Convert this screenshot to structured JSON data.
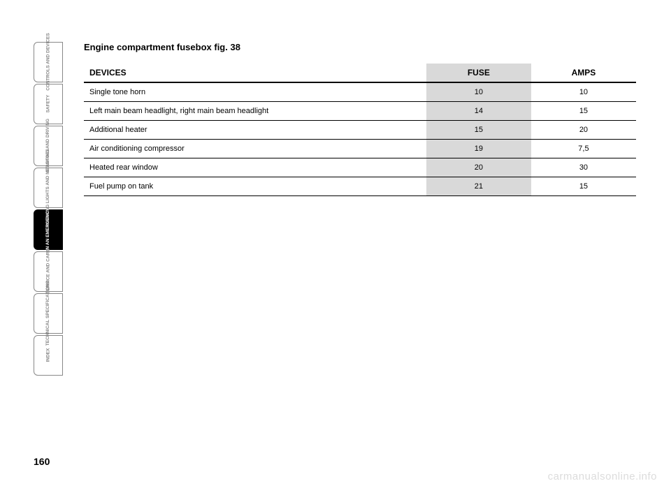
{
  "page_number": "160",
  "watermark": "carmanualsonline.info",
  "title": "Engine compartment fusebox fig. 38",
  "tabs": [
    {
      "label": "CONTROLS\nAND DEVICES",
      "active": false
    },
    {
      "label": "SAFETY",
      "active": false
    },
    {
      "label": "STARTING\nAND DRIVING",
      "active": false
    },
    {
      "label": "WARNING\nLIGHTS AND\nMESSAGES",
      "active": false
    },
    {
      "label": "IN AN\nEMERGENCY",
      "active": true
    },
    {
      "label": "SERVICE\nAND CARE",
      "active": false
    },
    {
      "label": "TECHNICAL\nSPECIFICATIONS",
      "active": false
    },
    {
      "label": "INDEX",
      "active": false
    }
  ],
  "table": {
    "columns": {
      "devices": "DEVICES",
      "fuse": "FUSE",
      "amps": "AMPS"
    },
    "header_bg_fuse": "#d9d9d9",
    "border_color": "#000000",
    "header_border_width": 2,
    "row_border_width": 1,
    "rows": [
      {
        "device": "Single tone horn",
        "fuse": "10",
        "amps": "10"
      },
      {
        "device": "Left main beam headlight, right main beam headlight",
        "fuse": "14",
        "amps": "15"
      },
      {
        "device": "Additional heater",
        "fuse": "15",
        "amps": "20"
      },
      {
        "device": "Air conditioning compressor",
        "fuse": "19",
        "amps": "7,5"
      },
      {
        "device": "Heated rear window",
        "fuse": "20",
        "amps": "30"
      },
      {
        "device": "Fuel pump on tank",
        "fuse": "21",
        "amps": "15"
      }
    ]
  },
  "colors": {
    "background": "#ffffff",
    "text": "#000000",
    "tab_border": "#888888",
    "tab_inactive_text": "#888888",
    "tab_active_bg": "#000000",
    "tab_active_text": "#ffffff",
    "watermark": "#dcdcdc"
  },
  "font": {
    "title_size": 13,
    "header_size": 12,
    "body_size": 11,
    "tab_size": 6.5
  }
}
